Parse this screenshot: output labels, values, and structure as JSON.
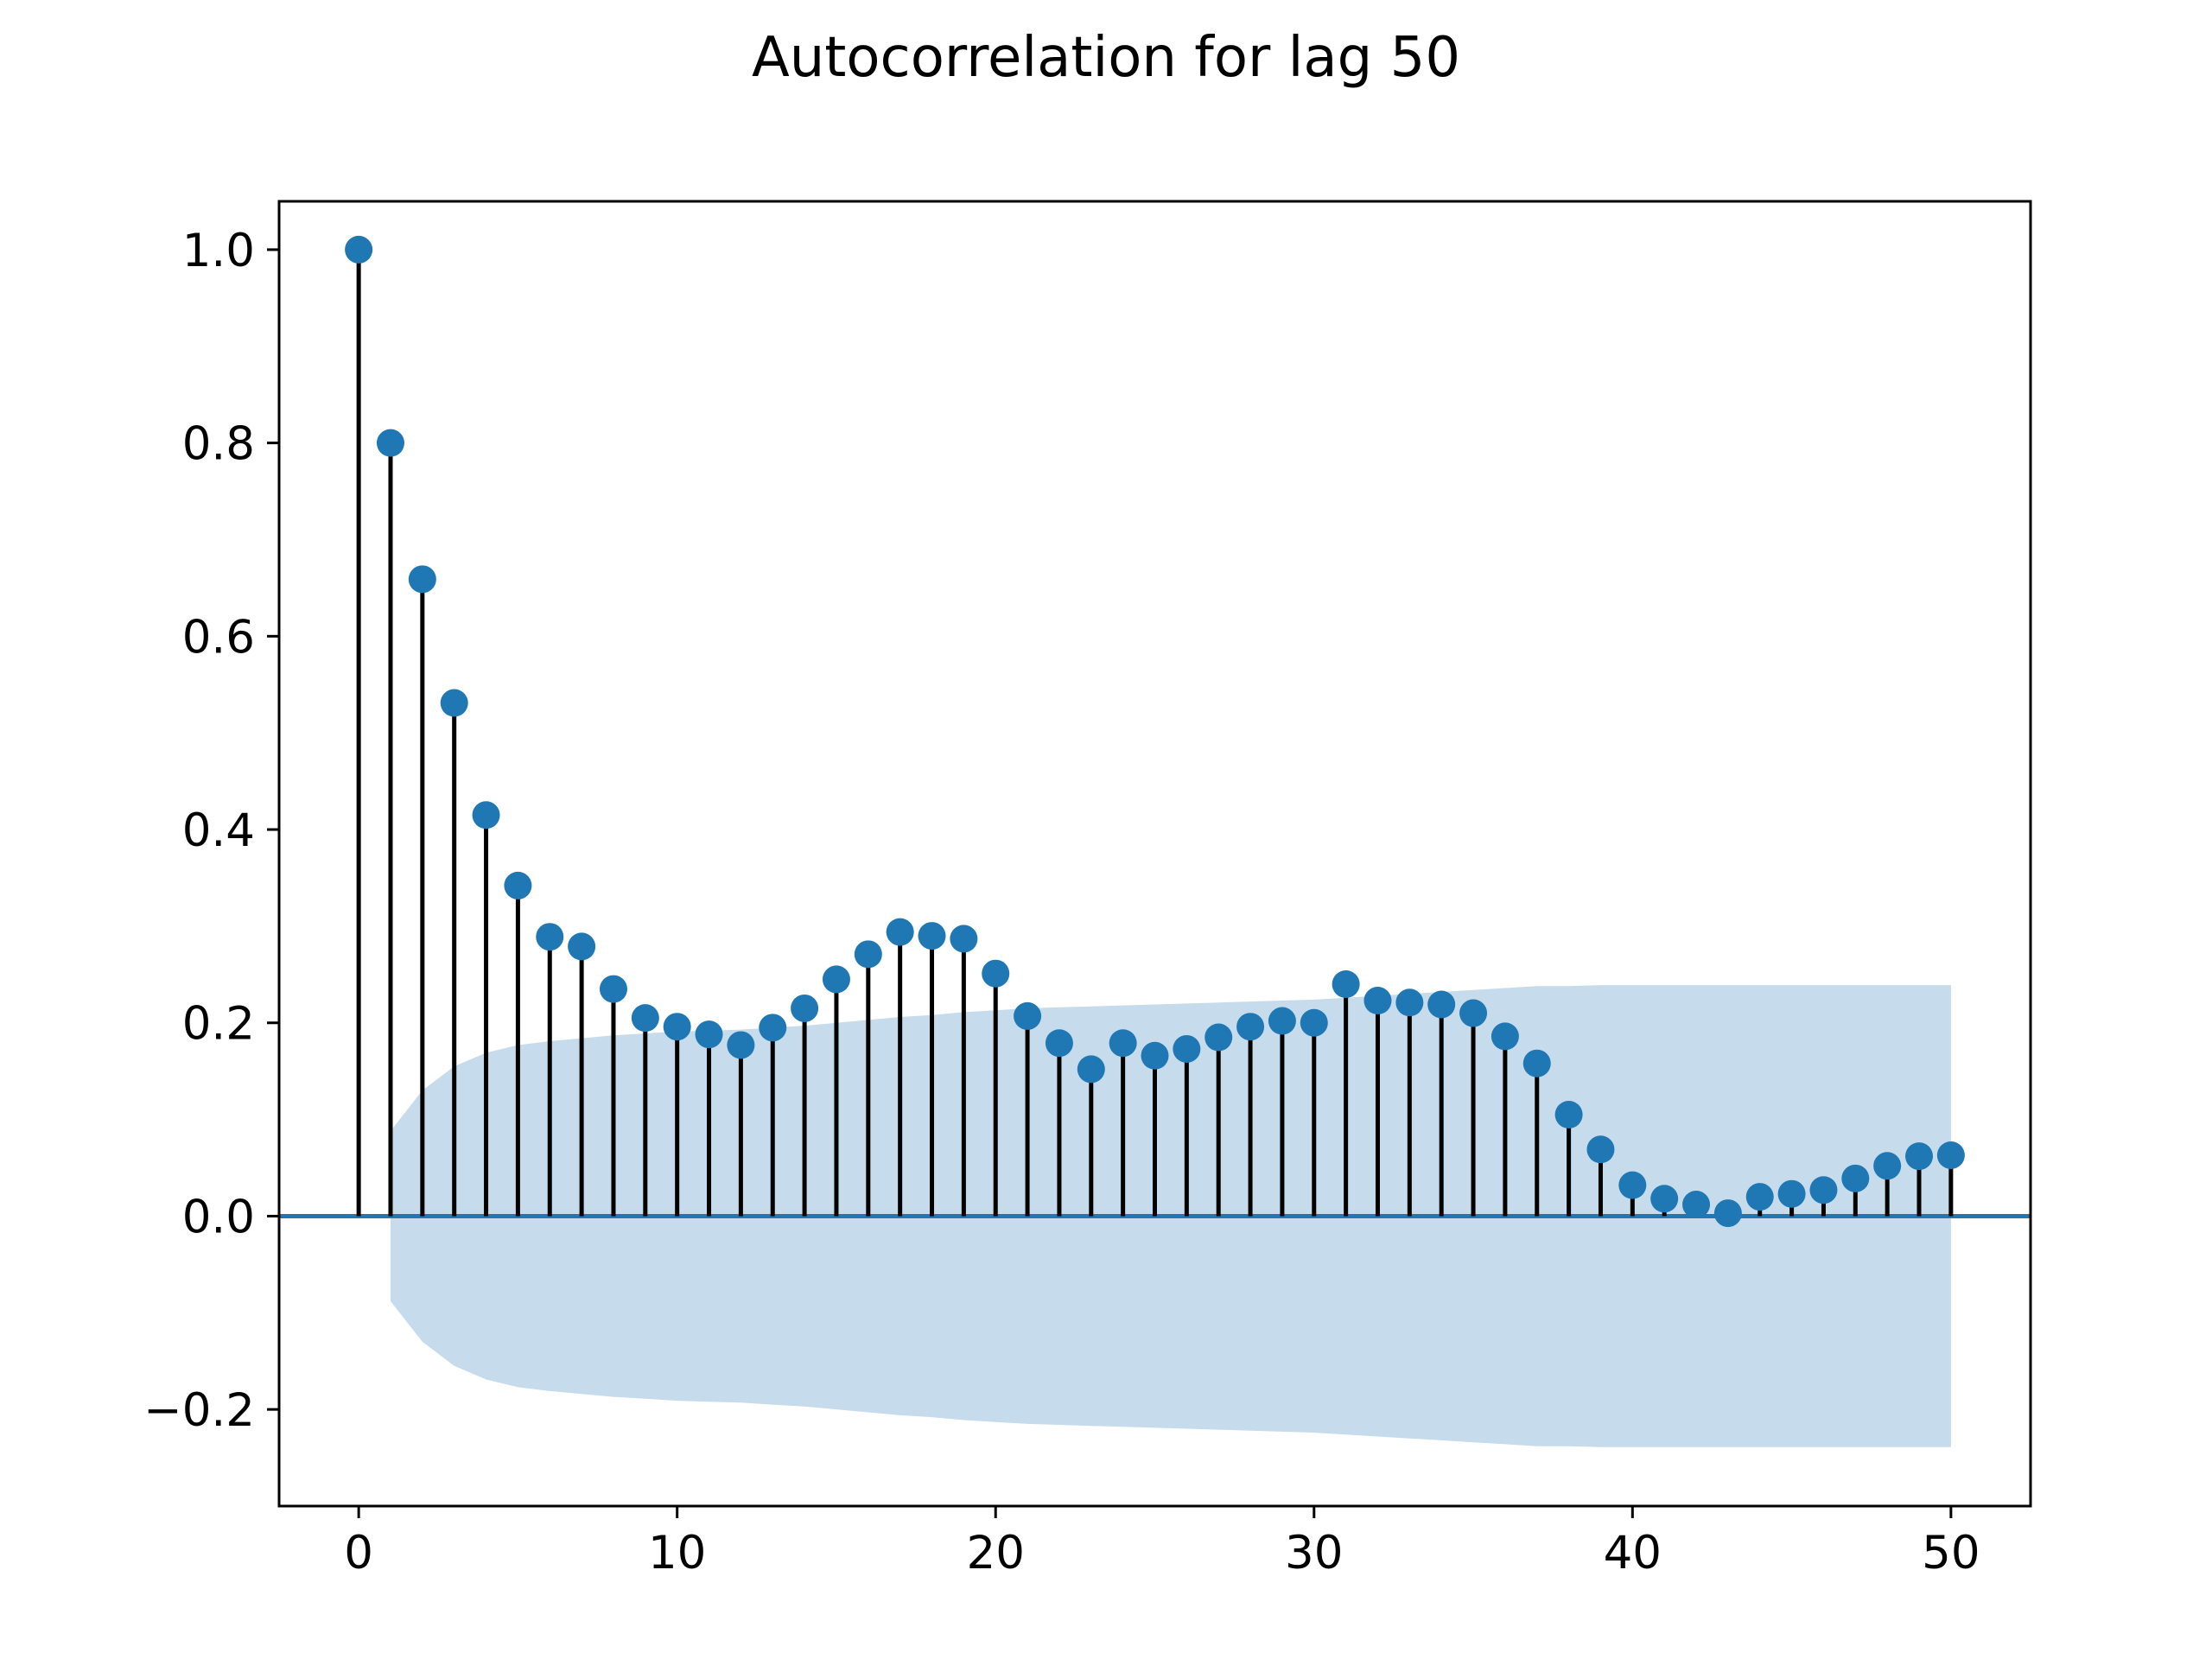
{
  "chart_data": {
    "type": "stem",
    "title": "Autocorrelation for lag 50",
    "xlabel": "",
    "ylabel": "",
    "xlim": [
      -2.5,
      52.5
    ],
    "ylim": [
      -0.3,
      1.05
    ],
    "x_ticks": [
      0,
      10,
      20,
      30,
      40,
      50
    ],
    "x_tick_labels": [
      "0",
      "10",
      "20",
      "30",
      "40",
      "50"
    ],
    "y_ticks": [
      -0.2,
      0.0,
      0.2,
      0.4,
      0.6,
      0.8,
      1.0
    ],
    "y_tick_labels": [
      "−0.2",
      "0.0",
      "0.2",
      "0.4",
      "0.6",
      "0.8",
      "1.0"
    ],
    "grid": false,
    "colors": {
      "marker": "#1f77b4",
      "stem": "#000000",
      "baseline": "#1f77b4",
      "confidence_band": "#c6dbeb"
    },
    "lags": [
      0,
      1,
      2,
      3,
      4,
      5,
      6,
      7,
      8,
      9,
      10,
      11,
      12,
      13,
      14,
      15,
      16,
      17,
      18,
      19,
      20,
      21,
      22,
      23,
      24,
      25,
      26,
      27,
      28,
      29,
      30,
      31,
      32,
      33,
      34,
      35,
      36,
      37,
      38,
      39,
      40,
      41,
      42,
      43,
      44,
      45,
      46,
      47,
      48,
      49,
      50
    ],
    "values": [
      1.0,
      0.8,
      0.659,
      0.531,
      0.415,
      0.342,
      0.289,
      0.279,
      0.235,
      0.205,
      0.196,
      0.188,
      0.177,
      0.195,
      0.215,
      0.245,
      0.271,
      0.294,
      0.29,
      0.287,
      0.251,
      0.207,
      0.179,
      0.152,
      0.179,
      0.166,
      0.173,
      0.185,
      0.196,
      0.202,
      0.2,
      0.24,
      0.223,
      0.221,
      0.219,
      0.21,
      0.186,
      0.158,
      0.105,
      0.069,
      0.032,
      0.018,
      0.012,
      0.003,
      0.02,
      0.023,
      0.027,
      0.039,
      0.052,
      0.062,
      0.063
    ],
    "confidence_band": {
      "lags": [
        1,
        2,
        3,
        4,
        5,
        6,
        7,
        8,
        9,
        10,
        11,
        12,
        13,
        14,
        15,
        16,
        17,
        18,
        19,
        20,
        21,
        22,
        23,
        24,
        25,
        26,
        27,
        28,
        29,
        30,
        31,
        32,
        33,
        34,
        35,
        36,
        37,
        38,
        39,
        40,
        41,
        42,
        43,
        44,
        45,
        46,
        47,
        48,
        49,
        50
      ],
      "upper": [
        0.088,
        0.13,
        0.155,
        0.169,
        0.177,
        0.181,
        0.184,
        0.187,
        0.189,
        0.191,
        0.192,
        0.193,
        0.195,
        0.197,
        0.2,
        0.203,
        0.206,
        0.208,
        0.211,
        0.213,
        0.215,
        0.216,
        0.217,
        0.218,
        0.219,
        0.22,
        0.221,
        0.222,
        0.223,
        0.224,
        0.226,
        0.228,
        0.23,
        0.232,
        0.234,
        0.236,
        0.238,
        0.238,
        0.239,
        0.239,
        0.239,
        0.239,
        0.239,
        0.239,
        0.239,
        0.239,
        0.239,
        0.239,
        0.239,
        0.239
      ]
    }
  }
}
